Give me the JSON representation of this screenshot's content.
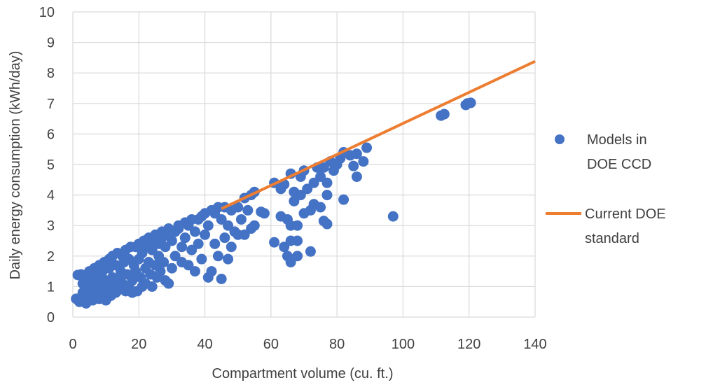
{
  "chart_data": {
    "type": "scatter",
    "xlabel": "Compartment volume (cu. ft.)",
    "ylabel": "Daily energy consumption (kWh/day)",
    "xlim": [
      0,
      140
    ],
    "ylim": [
      0,
      10
    ],
    "x_ticks": [
      "0",
      "20",
      "40",
      "60",
      "80",
      "100",
      "120",
      "140"
    ],
    "y_ticks": [
      "0",
      "1",
      "2",
      "3",
      "4",
      "5",
      "6",
      "7",
      "8",
      "9",
      "10"
    ],
    "grid": true,
    "legend_position": "right",
    "legend": [
      {
        "label_line1": "Models in",
        "label_line2": "DOE CCD",
        "color": "#4472C4"
      },
      {
        "label_line1": "Current DOE",
        "label_line2": "standard",
        "color": "#ED7D31"
      }
    ],
    "series": [
      {
        "name": "Models in DOE CCD",
        "kind": "scatter",
        "color": "#4472C4",
        "points": [
          [
            1,
            0.6
          ],
          [
            1.5,
            1.38
          ],
          [
            2,
            0.5
          ],
          [
            2.5,
            1.4
          ],
          [
            3,
            0.8
          ],
          [
            3,
            1.1
          ],
          [
            3.5,
            0.5
          ],
          [
            4,
            0.45
          ],
          [
            4,
            1.0
          ],
          [
            4.5,
            1.3
          ],
          [
            5,
            0.6
          ],
          [
            5,
            1.5
          ],
          [
            5.5,
            0.9
          ],
          [
            6,
            0.55
          ],
          [
            6,
            1.2
          ],
          [
            6.5,
            1.6
          ],
          [
            7,
            0.7
          ],
          [
            7,
            1.0
          ],
          [
            7.5,
            1.4
          ],
          [
            8,
            0.6
          ],
          [
            8,
            1.7
          ],
          [
            8.5,
            1.1
          ],
          [
            9,
            0.8
          ],
          [
            9,
            1.5
          ],
          [
            9.5,
            1.8
          ],
          [
            10,
            0.55
          ],
          [
            10,
            1.2
          ],
          [
            10.5,
            0.9
          ],
          [
            11,
            1.6
          ],
          [
            11,
            1.9
          ],
          [
            11.5,
            0.7
          ],
          [
            12,
            1.3
          ],
          [
            12,
            2.0
          ],
          [
            12.5,
            1.0
          ],
          [
            13,
            0.8
          ],
          [
            13,
            1.7
          ],
          [
            13.5,
            2.1
          ],
          [
            14,
            1.2
          ],
          [
            14,
            0.9
          ],
          [
            14.5,
            1.5
          ],
          [
            15,
            2.0
          ],
          [
            15,
            1.1
          ],
          [
            15.5,
            1.8
          ],
          [
            16,
            0.85
          ],
          [
            16,
            2.2
          ],
          [
            16.5,
            1.4
          ],
          [
            17,
            1.0
          ],
          [
            17,
            1.9
          ],
          [
            17.5,
            2.3
          ],
          [
            18,
            1.2
          ],
          [
            18,
            0.8
          ],
          [
            18.5,
            1.7
          ],
          [
            19,
            2.3
          ],
          [
            19,
            1.5
          ],
          [
            19.5,
            0.85
          ],
          [
            20,
            1.9
          ],
          [
            20,
            2.4
          ],
          [
            20.5,
            1.3
          ],
          [
            21,
            1.0
          ],
          [
            21,
            2.1
          ],
          [
            21.5,
            2.5
          ],
          [
            22,
            1.6
          ],
          [
            22,
            1.1
          ],
          [
            22.5,
            2.3
          ],
          [
            23,
            1.8
          ],
          [
            23,
            2.6
          ],
          [
            23.5,
            1.4
          ],
          [
            24,
            2.2
          ],
          [
            24,
            1.0
          ],
          [
            24.5,
            2.5
          ],
          [
            25,
            1.7
          ],
          [
            25,
            2.7
          ],
          [
            25.5,
            1.3
          ],
          [
            26,
            2.4
          ],
          [
            26,
            2.0
          ],
          [
            26.5,
            1.5
          ],
          [
            27,
            2.6
          ],
          [
            27,
            2.8
          ],
          [
            27.5,
            1.8
          ],
          [
            28,
            2.3
          ],
          [
            28,
            1.2
          ],
          [
            28.5,
            2.7
          ],
          [
            29,
            1.1
          ],
          [
            29,
            2.9
          ],
          [
            30,
            2.5
          ],
          [
            30,
            1.6
          ],
          [
            31,
            2.8
          ],
          [
            31,
            2.0
          ],
          [
            32,
            2.9
          ],
          [
            32,
            3.0
          ],
          [
            33,
            2.3
          ],
          [
            33,
            1.8
          ],
          [
            34,
            3.1
          ],
          [
            34,
            2.6
          ],
          [
            35,
            1.7
          ],
          [
            35,
            3.0
          ],
          [
            36,
            2.2
          ],
          [
            36,
            3.2
          ],
          [
            37,
            1.5
          ],
          [
            37,
            2.8
          ],
          [
            38,
            3.2
          ],
          [
            38,
            2.4
          ],
          [
            39,
            1.9
          ],
          [
            39,
            3.3
          ],
          [
            40,
            2.7
          ],
          [
            40,
            3.4
          ],
          [
            41,
            1.3
          ],
          [
            41,
            3.0
          ],
          [
            42,
            1.5
          ],
          [
            42,
            3.5
          ],
          [
            43,
            2.4
          ],
          [
            43,
            3.4
          ],
          [
            44,
            2.0
          ],
          [
            44,
            3.6
          ],
          [
            45,
            1.25
          ],
          [
            45,
            3.2
          ],
          [
            46,
            2.6
          ],
          [
            46,
            3.6
          ],
          [
            47,
            1.9
          ],
          [
            47,
            3.0
          ],
          [
            48,
            3.5
          ],
          [
            48,
            2.3
          ],
          [
            49,
            2.8
          ],
          [
            50,
            3.6
          ],
          [
            50,
            2.7
          ],
          [
            51,
            3.2
          ],
          [
            52,
            3.9
          ],
          [
            52,
            2.7
          ],
          [
            53,
            3.5
          ],
          [
            54,
            2.9
          ],
          [
            54,
            4.0
          ],
          [
            55,
            4.1
          ],
          [
            55,
            3.0
          ],
          [
            57,
            3.45
          ],
          [
            58,
            3.4
          ],
          [
            61,
            2.45
          ],
          [
            61,
            4.4
          ],
          [
            63,
            3.3
          ],
          [
            63,
            4.2
          ],
          [
            64,
            2.3
          ],
          [
            64,
            4.35
          ],
          [
            65,
            3.2
          ],
          [
            65,
            2.0
          ],
          [
            66,
            1.8
          ],
          [
            66,
            2.5
          ],
          [
            66,
            3.0
          ],
          [
            66,
            4.7
          ],
          [
            67,
            3.8
          ],
          [
            67,
            4.1
          ],
          [
            68,
            2.0
          ],
          [
            68,
            2.5
          ],
          [
            68,
            3.0
          ],
          [
            69,
            4.0
          ],
          [
            69,
            4.6
          ],
          [
            70,
            3.4
          ],
          [
            70,
            4.8
          ],
          [
            71,
            4.2
          ],
          [
            72,
            3.5
          ],
          [
            72,
            2.15
          ],
          [
            73,
            4.4
          ],
          [
            73,
            3.7
          ],
          [
            74,
            4.9
          ],
          [
            75,
            3.6
          ],
          [
            75,
            4.6
          ],
          [
            76,
            3.15
          ],
          [
            76,
            4.9
          ],
          [
            77,
            3.05
          ],
          [
            77,
            4.4
          ],
          [
            77,
            4.0
          ],
          [
            78,
            5.1
          ],
          [
            79,
            4.8
          ],
          [
            80,
            5.0
          ],
          [
            81,
            5.2
          ],
          [
            82,
            3.85
          ],
          [
            82,
            5.4
          ],
          [
            84,
            5.3
          ],
          [
            85,
            4.95
          ],
          [
            86,
            4.6
          ],
          [
            86,
            5.35
          ],
          [
            88,
            5.1
          ],
          [
            89,
            5.55
          ],
          [
            97,
            3.3
          ],
          [
            111.5,
            6.6
          ],
          [
            112.5,
            6.65
          ],
          [
            119,
            6.95
          ],
          [
            119.5,
            7.0
          ],
          [
            120.5,
            7.02
          ]
        ]
      },
      {
        "name": "Current DOE standard",
        "kind": "line",
        "color": "#ED7D31",
        "points": [
          [
            45,
            3.55
          ],
          [
            140,
            8.38
          ]
        ]
      }
    ]
  }
}
